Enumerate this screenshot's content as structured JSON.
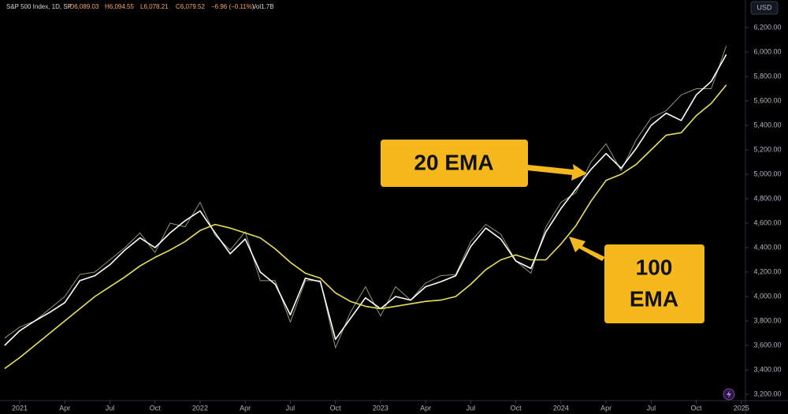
{
  "chart_data": {
    "type": "line",
    "header": {
      "title": "S&P 500 Index, 1D, SP",
      "open": "O6,089.03",
      "high": "H6,094.55",
      "low": "L6,078.21",
      "close": "C6,079.52",
      "change": "−6.96 (−0.11%)",
      "volume": "Vol1.7B"
    },
    "currency": "USD",
    "annotations": [
      {
        "text": "20 EMA"
      },
      {
        "lines": [
          "100",
          "EMA"
        ]
      }
    ],
    "x": [
      -1,
      0,
      1,
      2,
      3,
      4,
      5,
      6,
      7,
      8,
      9,
      10,
      11,
      12,
      13,
      14,
      15,
      16,
      17,
      18,
      19,
      20,
      21,
      22,
      23,
      24,
      25,
      26,
      27,
      28,
      29,
      30,
      31,
      32,
      33,
      34,
      35,
      36,
      37,
      38,
      39,
      40,
      41,
      42,
      43,
      44,
      45,
      46,
      47
    ],
    "series": [
      {
        "name": "Price",
        "color": "#8a9a70",
        "values": [
          3660,
          3750,
          3800,
          3900,
          4000,
          4180,
          4200,
          4300,
          4400,
          4520,
          4360,
          4600,
          4570,
          4770,
          4500,
          4380,
          4530,
          4130,
          4130,
          3790,
          4130,
          4130,
          3580,
          3870,
          4080,
          3840,
          4080,
          3970,
          4110,
          4170,
          4180,
          4450,
          4590,
          4510,
          4290,
          4190,
          4570,
          4770,
          4850,
          5100,
          5250,
          5030,
          5280,
          5460,
          5520,
          5650,
          5700,
          5700,
          6050
        ]
      },
      {
        "name": "20 EMA",
        "color": "#ffffff",
        "values": [
          3600,
          3720,
          3800,
          3870,
          3950,
          4130,
          4170,
          4260,
          4380,
          4480,
          4400,
          4520,
          4620,
          4700,
          4520,
          4350,
          4470,
          4200,
          4100,
          3850,
          4150,
          4120,
          3650,
          3820,
          3990,
          3900,
          4000,
          3970,
          4080,
          4120,
          4170,
          4410,
          4560,
          4470,
          4290,
          4230,
          4530,
          4720,
          4880,
          5040,
          5170,
          5050,
          5210,
          5400,
          5500,
          5440,
          5650,
          5760,
          5980
        ]
      },
      {
        "name": "100 EMA",
        "color": "#e8e05a",
        "values": [
          3410,
          3500,
          3600,
          3700,
          3800,
          3900,
          4000,
          4080,
          4160,
          4250,
          4320,
          4380,
          4450,
          4540,
          4590,
          4560,
          4520,
          4480,
          4390,
          4280,
          4190,
          4150,
          4030,
          3960,
          3920,
          3900,
          3920,
          3940,
          3960,
          3970,
          4000,
          4100,
          4220,
          4300,
          4340,
          4300,
          4300,
          4430,
          4580,
          4780,
          4950,
          5000,
          5080,
          5200,
          5320,
          5340,
          5480,
          5580,
          5730
        ]
      }
    ],
    "xlim": [
      -1.31,
      48.22
    ],
    "xticks": [
      {
        "value": 0,
        "label": "2021"
      },
      {
        "value": 3,
        "label": "Apr"
      },
      {
        "value": 6,
        "label": "Jul"
      },
      {
        "value": 9,
        "label": "Oct"
      },
      {
        "value": 12,
        "label": "2022"
      },
      {
        "value": 15,
        "label": "Apr"
      },
      {
        "value": 18,
        "label": "Jul"
      },
      {
        "value": 21,
        "label": "Oct"
      },
      {
        "value": 24,
        "label": "2023"
      },
      {
        "value": 27,
        "label": "Apr"
      },
      {
        "value": 30,
        "label": "Jul"
      },
      {
        "value": 33,
        "label": "Oct"
      },
      {
        "value": 36,
        "label": "2024"
      },
      {
        "value": 39,
        "label": "Apr"
      },
      {
        "value": 42,
        "label": "Jul"
      },
      {
        "value": 45,
        "label": "Oct"
      },
      {
        "value": 48,
        "label": "2025"
      }
    ],
    "ylim": [
      3200,
      6200
    ],
    "yticks": [
      {
        "value": 3200,
        "label": "3,200.00"
      },
      {
        "value": 3400,
        "label": "3,400.00"
      },
      {
        "value": 3600,
        "label": "3,600.00"
      },
      {
        "value": 3800,
        "label": "3,800.00"
      },
      {
        "value": 4000,
        "label": "4,000.00"
      },
      {
        "value": 4200,
        "label": "4,200.00"
      },
      {
        "value": 4400,
        "label": "4,400.00"
      },
      {
        "value": 4600,
        "label": "4,600.00"
      },
      {
        "value": 4800,
        "label": "4,800.00"
      },
      {
        "value": 5000,
        "label": "5,000.00"
      },
      {
        "value": 5200,
        "label": "5,200.00"
      },
      {
        "value": 5400,
        "label": "5,400.00"
      },
      {
        "value": 5600,
        "label": "5,600.00"
      },
      {
        "value": 5800,
        "label": "5,800.00"
      },
      {
        "value": 6000,
        "label": "6,000.00"
      },
      {
        "value": 6200,
        "label": "6,200.00"
      }
    ]
  }
}
